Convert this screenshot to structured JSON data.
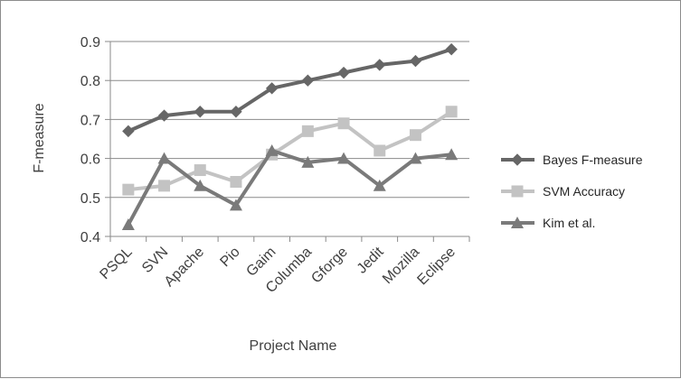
{
  "chart_data": {
    "type": "line",
    "title": "",
    "xlabel": "Project Name",
    "ylabel": "F-measure",
    "ylim": [
      0.4,
      0.9
    ],
    "yticks": [
      "0.4",
      "0.5",
      "0.6",
      "0.7",
      "0.8",
      "0.9"
    ],
    "grid": true,
    "legend_position": "right",
    "categories": [
      "PSQL",
      "SVN",
      "Apache",
      "Pio",
      "Gaim",
      "Columba",
      "Gforge",
      "Jedit",
      "Mozilla",
      "Eclipse"
    ],
    "series": [
      {
        "name": "Bayes F-measure",
        "marker": "diamond",
        "color": "#666666",
        "values": [
          0.67,
          0.71,
          0.72,
          0.72,
          0.78,
          0.8,
          0.82,
          0.84,
          0.85,
          0.88
        ]
      },
      {
        "name": "SVM Accuracy",
        "marker": "square",
        "color": "#c3c3c3",
        "values": [
          0.52,
          0.53,
          0.57,
          0.54,
          0.61,
          0.67,
          0.69,
          0.62,
          0.66,
          0.72
        ]
      },
      {
        "name": "Kim et al.",
        "marker": "triangle",
        "color": "#7a7a7a",
        "values": [
          0.43,
          0.6,
          0.53,
          0.48,
          0.62,
          0.59,
          0.6,
          0.53,
          0.6,
          0.61
        ]
      }
    ]
  }
}
